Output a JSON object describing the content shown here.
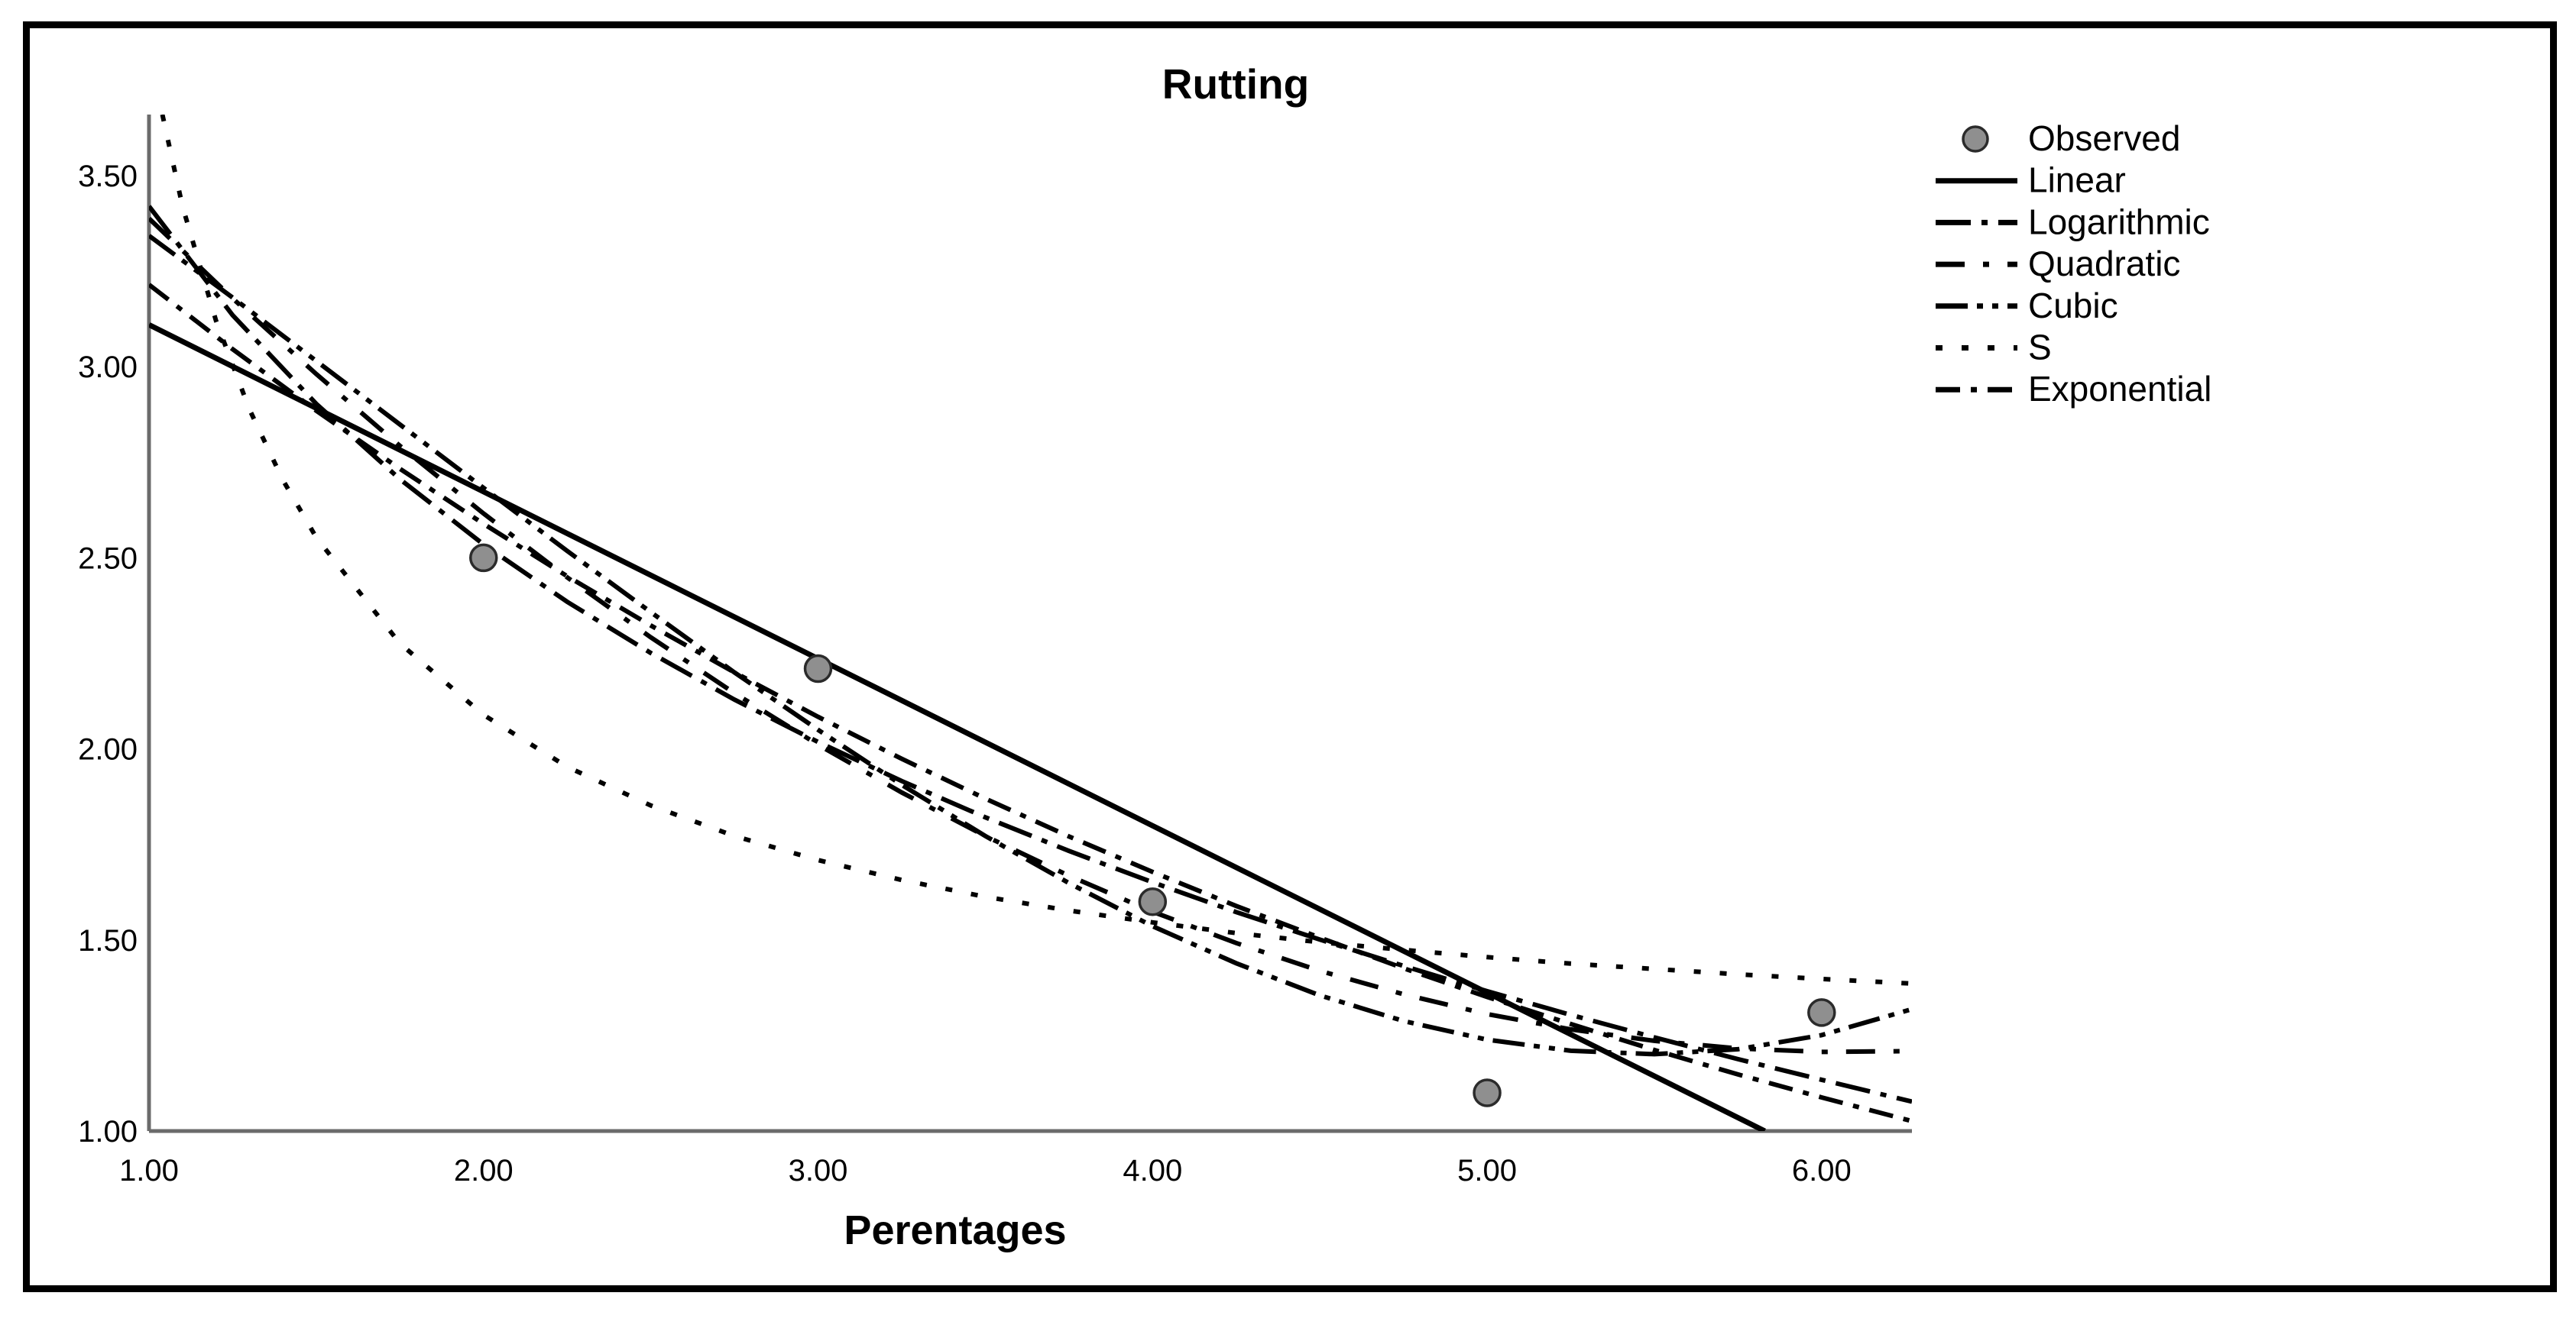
{
  "chart_data": {
    "type": "line",
    "title": "Rutting",
    "xlabel": "Perentages",
    "ylabel": "",
    "grid": false,
    "legend_position": "top-right",
    "x_ticks": [
      "1.00",
      "2.00",
      "3.00",
      "4.00",
      "5.00",
      "6.00"
    ],
    "x_tick_values": [
      1,
      2,
      3,
      4,
      5,
      6
    ],
    "y_ticks": [
      "1.00",
      "1.50",
      "2.00",
      "2.50",
      "3.00",
      "3.50"
    ],
    "y_tick_values": [
      1,
      1.5,
      2,
      2.5,
      3,
      3.5
    ],
    "x_range": [
      1.0,
      6.27
    ],
    "y_range": [
      1.0,
      3.66
    ],
    "colors": {
      "curve": "#000000",
      "axis": "#6b6b6b",
      "text": "#000000",
      "marker_fill": "#8f8f8f",
      "marker_stroke": "#2b2b2b",
      "background": "#ffffff"
    },
    "observed": {
      "label": "Observed",
      "marker": "circle",
      "points": [
        [
          2,
          2.5
        ],
        [
          3,
          2.21
        ],
        [
          4,
          1.6
        ],
        [
          5,
          1.1
        ],
        [
          6,
          1.31
        ]
      ]
    },
    "series": [
      {
        "name": "Linear",
        "line_style": "solid",
        "points": [
          [
            1,
            3.11
          ],
          [
            2,
            2.673
          ],
          [
            3,
            2.236
          ],
          [
            4,
            1.799
          ],
          [
            5,
            1.362
          ],
          [
            5.83,
            1.0
          ]
        ]
      },
      {
        "name": "Logarithmic",
        "line_style": "dash-dot",
        "points": [
          [
            1,
            3.42
          ],
          [
            1.25,
            3.135
          ],
          [
            1.5,
            2.903
          ],
          [
            1.75,
            2.706
          ],
          [
            2,
            2.535
          ],
          [
            2.25,
            2.385
          ],
          [
            2.5,
            2.251
          ],
          [
            2.75,
            2.129
          ],
          [
            3,
            2.018
          ],
          [
            3.25,
            1.916
          ],
          [
            3.5,
            1.821
          ],
          [
            3.75,
            1.733
          ],
          [
            4,
            1.651
          ],
          [
            4.25,
            1.573
          ],
          [
            4.5,
            1.501
          ],
          [
            4.75,
            1.432
          ],
          [
            5,
            1.366
          ],
          [
            5.25,
            1.304
          ],
          [
            5.5,
            1.245
          ],
          [
            5.75,
            1.188
          ],
          [
            6,
            1.134
          ],
          [
            6.27,
            1.077
          ]
        ]
      },
      {
        "name": "Quadratic",
        "line_style": "dash-space-dot",
        "points": [
          [
            1,
            3.388
          ],
          [
            1.25,
            3.179
          ],
          [
            1.5,
            2.981
          ],
          [
            1.75,
            2.793
          ],
          [
            2,
            2.616
          ],
          [
            2.25,
            2.449
          ],
          [
            2.5,
            2.292
          ],
          [
            2.75,
            2.146
          ],
          [
            3,
            2.011
          ],
          [
            3.25,
            1.886
          ],
          [
            3.5,
            1.772
          ],
          [
            3.75,
            1.668
          ],
          [
            4,
            1.574
          ],
          [
            4.25,
            1.492
          ],
          [
            4.5,
            1.419
          ],
          [
            4.75,
            1.358
          ],
          [
            5,
            1.306
          ],
          [
            5.25,
            1.266
          ],
          [
            5.5,
            1.236
          ],
          [
            5.75,
            1.216
          ],
          [
            6,
            1.207
          ],
          [
            6.27,
            1.209
          ]
        ]
      },
      {
        "name": "Cubic",
        "line_style": "dash-dot-dot",
        "points": [
          [
            1,
            3.343
          ],
          [
            1.25,
            3.181
          ],
          [
            1.5,
            3.015
          ],
          [
            1.75,
            2.849
          ],
          [
            2,
            2.683
          ],
          [
            2.25,
            2.518
          ],
          [
            2.5,
            2.358
          ],
          [
            2.75,
            2.2
          ],
          [
            3,
            2.05
          ],
          [
            3.25,
            1.906
          ],
          [
            3.5,
            1.772
          ],
          [
            3.75,
            1.649
          ],
          [
            4,
            1.536
          ],
          [
            4.25,
            1.439
          ],
          [
            4.5,
            1.355
          ],
          [
            4.75,
            1.288
          ],
          [
            5,
            1.239
          ],
          [
            5.25,
            1.21
          ],
          [
            5.5,
            1.201
          ],
          [
            5.75,
            1.214
          ],
          [
            6,
            1.251
          ],
          [
            6.27,
            1.319
          ]
        ]
      },
      {
        "name": "S",
        "line_style": "dotted",
        "points": [
          [
            1.04,
            3.66
          ],
          [
            1.1,
            3.42
          ],
          [
            1.2,
            3.121
          ],
          [
            1.3,
            2.889
          ],
          [
            1.4,
            2.704
          ],
          [
            1.5,
            2.553
          ],
          [
            1.75,
            2.276
          ],
          [
            2,
            2.089
          ],
          [
            2.25,
            1.953
          ],
          [
            2.5,
            1.852
          ],
          [
            2.75,
            1.772
          ],
          [
            3,
            1.709
          ],
          [
            3.25,
            1.657
          ],
          [
            3.5,
            1.613
          ],
          [
            3.75,
            1.577
          ],
          [
            4,
            1.546
          ],
          [
            4.25,
            1.518
          ],
          [
            4.5,
            1.494
          ],
          [
            4.75,
            1.474
          ],
          [
            5,
            1.455
          ],
          [
            5.25,
            1.438
          ],
          [
            5.5,
            1.424
          ],
          [
            5.75,
            1.41
          ],
          [
            6,
            1.398
          ],
          [
            6.27,
            1.386
          ]
        ]
      },
      {
        "name": "Exponential",
        "line_style": "dash-dot-short",
        "points": [
          [
            1,
            3.215
          ],
          [
            1.25,
            3.046
          ],
          [
            1.5,
            2.885
          ],
          [
            1.75,
            2.733
          ],
          [
            2,
            2.589
          ],
          [
            2.25,
            2.452
          ],
          [
            2.5,
            2.323
          ],
          [
            2.75,
            2.2
          ],
          [
            3,
            2.084
          ],
          [
            3.25,
            1.974
          ],
          [
            3.5,
            1.87
          ],
          [
            3.75,
            1.771
          ],
          [
            4,
            1.678
          ],
          [
            4.25,
            1.589
          ],
          [
            4.5,
            1.506
          ],
          [
            4.75,
            1.426
          ],
          [
            5,
            1.351
          ],
          [
            5.25,
            1.28
          ],
          [
            5.5,
            1.212
          ],
          [
            5.75,
            1.148
          ],
          [
            6,
            1.088
          ],
          [
            6.27,
            1.026
          ]
        ]
      }
    ]
  }
}
